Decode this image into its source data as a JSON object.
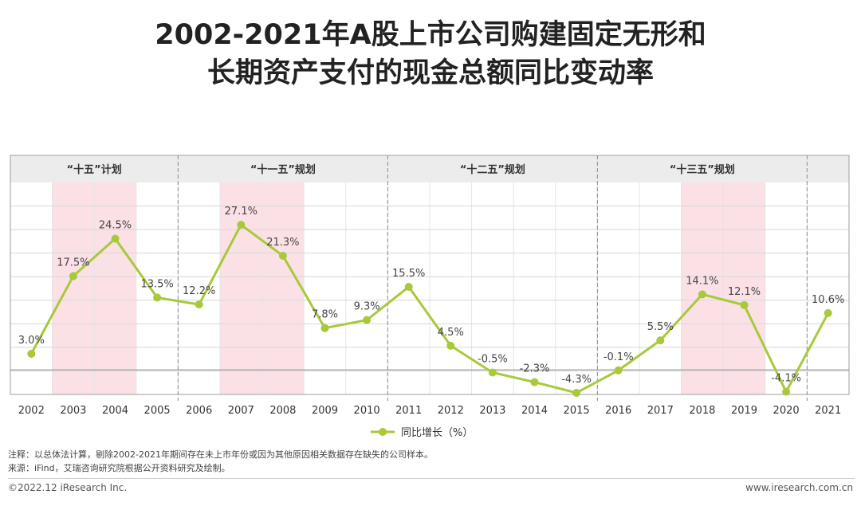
{
  "title_line1": "2002-2021年A股上市公司购建固定无形和",
  "title_line2": "长期资产支付的现金总额同比变动率",
  "colors": {
    "line": "#a8c93a",
    "highlight": "#fbe1e6",
    "header_band": "#ececec",
    "grid": "#d7d7d7",
    "divider": "#9a9a9a"
  },
  "plans": [
    {
      "label": "“十五”计划",
      "years": [
        2002,
        2005
      ]
    },
    {
      "label": "“十一五”规划",
      "years": [
        2006,
        2010
      ]
    },
    {
      "label": "“十二五”规划",
      "years": [
        2011,
        2015
      ]
    },
    {
      "label": "“十三五”规划",
      "years": [
        2016,
        2020
      ]
    }
  ],
  "highlighted_years": [
    [
      2003,
      2004
    ],
    [
      2007,
      2008
    ],
    [
      2018,
      2019
    ]
  ],
  "chart_data": {
    "type": "line",
    "categories": [
      "2002",
      "2003",
      "2004",
      "2005",
      "2006",
      "2007",
      "2008",
      "2009",
      "2010",
      "2011",
      "2012",
      "2013",
      "2014",
      "2015",
      "2016",
      "2017",
      "2018",
      "2019",
      "2020",
      "2021"
    ],
    "series": [
      {
        "name": "同比增长（%）",
        "values": [
          3.0,
          17.5,
          24.5,
          13.5,
          12.2,
          27.1,
          21.3,
          7.8,
          9.3,
          15.5,
          4.5,
          -0.5,
          -2.3,
          -4.3,
          -0.1,
          5.5,
          14.1,
          12.1,
          -4.1,
          10.6
        ],
        "labels": [
          "3.0%",
          "17.5%",
          "24.5%",
          "13.5%",
          "12.2%",
          "27.1%",
          "21.3%",
          "7.8%",
          "9.3%",
          "15.5%",
          "4.5%",
          "-0.5%",
          "-2.3%",
          "-4.3%",
          "-0.1%",
          "5.5%",
          "14.1%",
          "12.1%",
          "-4.1%",
          "10.6%"
        ]
      }
    ],
    "ylim": [
      -4.6,
      35
    ],
    "grid": true,
    "legend": "bottom"
  },
  "notes": {
    "line1": "注释：以总体法计算，剔除2002-2021年期间存在未上市年份或因为其他原因相关数据存在缺失的公司样本。",
    "line2": "来源：iFind，艾瑞咨询研究院根据公开资料研究及绘制。"
  },
  "footer": {
    "copyright": "©2022.12 iResearch Inc.",
    "website": "www.iresearch.com.cn"
  }
}
